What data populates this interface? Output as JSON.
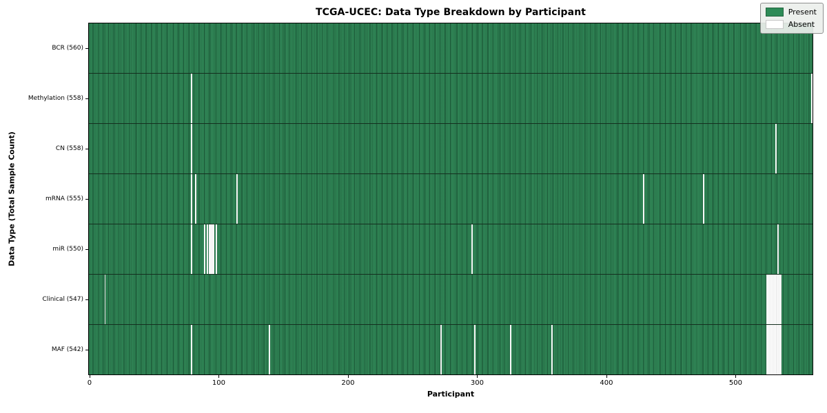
{
  "title": "TCGA-UCEC: Data Type Breakdown by Participant",
  "xlabel": "Participant",
  "ylabel": "Data Type (Total Sample Count)",
  "legend": {
    "present_label": "Present",
    "absent_label": "Absent"
  },
  "colors": {
    "present": "#2e8b57",
    "absent": "#ffffff",
    "cell_edge": "#142e1e"
  },
  "chart_data": {
    "type": "heatmap",
    "title": "TCGA-UCEC: Data Type Breakdown by Participant",
    "xlabel": "Participant",
    "ylabel": "Data Type (Total Sample Count)",
    "legend_entries": [
      "Present",
      "Absent"
    ],
    "legend_position": "upper right",
    "n_participants": 560,
    "x_range": [
      0,
      559
    ],
    "x_ticks": [
      0,
      100,
      200,
      300,
      400,
      500
    ],
    "rows": [
      {
        "label": "BCR (560)",
        "data_type": "BCR",
        "present_count": 560,
        "absent_participants": []
      },
      {
        "label": "Methylation (558)",
        "data_type": "Methylation",
        "present_count": 558,
        "absent_participants": [
          79,
          559
        ]
      },
      {
        "label": "CN (558)",
        "data_type": "CN",
        "present_count": 558,
        "absent_participants": [
          79,
          531
        ]
      },
      {
        "label": "mRNA (555)",
        "data_type": "mRNA",
        "present_count": 555,
        "absent_participants": [
          79,
          82,
          114,
          429,
          475
        ]
      },
      {
        "label": "miR (550)",
        "data_type": "miR",
        "present_count": 550,
        "absent_participants": [
          79,
          89,
          91,
          93,
          94,
          95,
          96,
          98,
          296,
          533
        ]
      },
      {
        "label": "Clinical (547)",
        "data_type": "Clinical",
        "present_count": 547,
        "absent_participants": [
          12,
          524,
          525,
          526,
          527,
          528,
          529,
          530,
          531,
          532,
          533,
          534,
          535
        ]
      },
      {
        "label": "MAF (542)",
        "data_type": "MAF",
        "present_count": 542,
        "absent_participants": [
          79,
          139,
          272,
          298,
          326,
          358,
          524,
          525,
          526,
          527,
          528,
          529,
          530,
          531,
          532,
          533,
          534,
          535
        ]
      }
    ]
  }
}
